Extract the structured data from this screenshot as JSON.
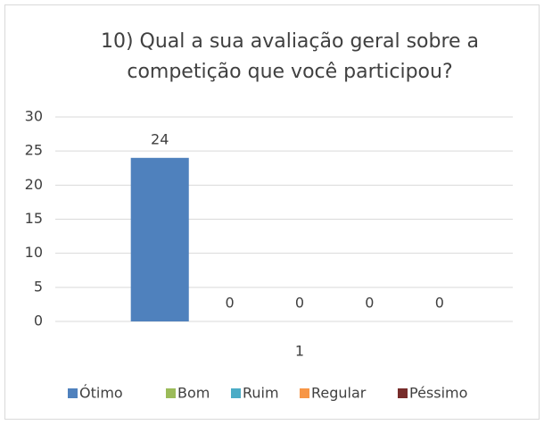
{
  "chart_data": {
    "type": "bar",
    "title": "10) Qual a sua  avaliação geral sobre a competição que você participou?",
    "categories": [
      "1"
    ],
    "series": [
      {
        "name": "Ótimo",
        "color": "#4f81bd",
        "values": [
          24
        ]
      },
      {
        "name": "Bom",
        "color": "#9bbb59",
        "values": [
          0
        ]
      },
      {
        "name": "Ruim",
        "color": "#4bacc6",
        "values": [
          0
        ]
      },
      {
        "name": "Regular",
        "color": "#f79646",
        "values": [
          0
        ]
      },
      {
        "name": "Péssimo",
        "color": "#772c2a",
        "values": [
          0
        ]
      }
    ],
    "ylim": [
      0,
      30
    ],
    "yticks": [
      0,
      5,
      10,
      15,
      20,
      25,
      30
    ],
    "grid": true,
    "legend": "bottom",
    "data_labels": true
  }
}
